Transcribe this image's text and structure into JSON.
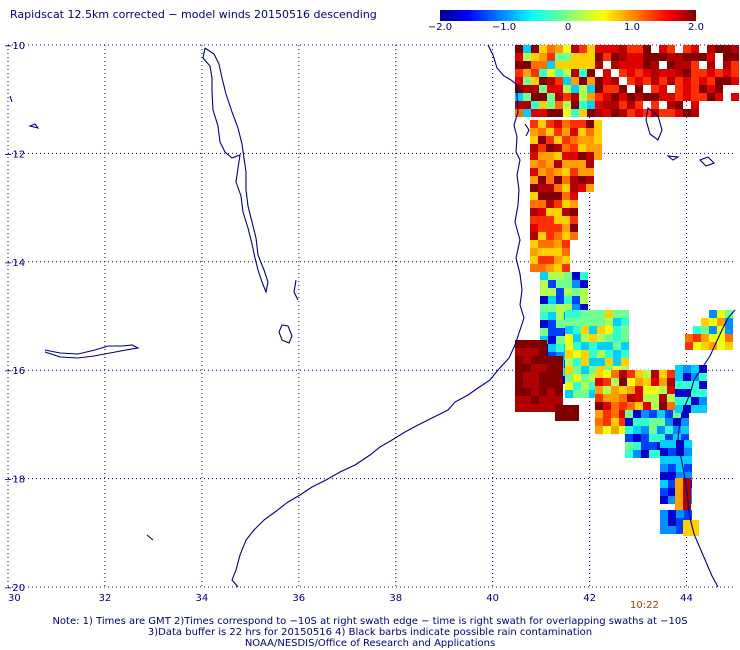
{
  "title": "Rapidscat 12.5km corrected − model winds 20150516 descending",
  "colorbar": {
    "ticks": [
      "−2.0",
      "−1.0",
      "0",
      "1.0",
      "2.0"
    ],
    "values": [
      -2.0,
      -1.0,
      0,
      1.0,
      2.0
    ],
    "range": [
      -2.0,
      2.0
    ]
  },
  "map": {
    "lon_range": [
      30,
      45
    ],
    "lat_range": [
      -20,
      -10
    ],
    "lon_labels": [
      "30",
      "32",
      "34",
      "36",
      "38",
      "40",
      "42",
      "44"
    ],
    "lon_values": [
      30,
      32,
      34,
      36,
      38,
      40,
      42,
      44
    ],
    "lat_labels": [
      "−10",
      "−12",
      "−14",
      "−16",
      "−18",
      "−20"
    ],
    "lat_values": [
      -10,
      -12,
      -14,
      -16,
      -18,
      -20
    ],
    "grid": true,
    "coast_color": "#000080"
  },
  "swath_time": "10:22",
  "notes": [
    "Note: 1) Times are GMT 2)Times correspond to −10S at right swath edge − time is right swath for overlapping swaths at −10S",
    "3)Data buffer is 22 hrs for 20150516 4) Black barbs indicate possible rain contamination",
    "NOAA/NESDIS/Office of Research and Applications"
  ]
}
